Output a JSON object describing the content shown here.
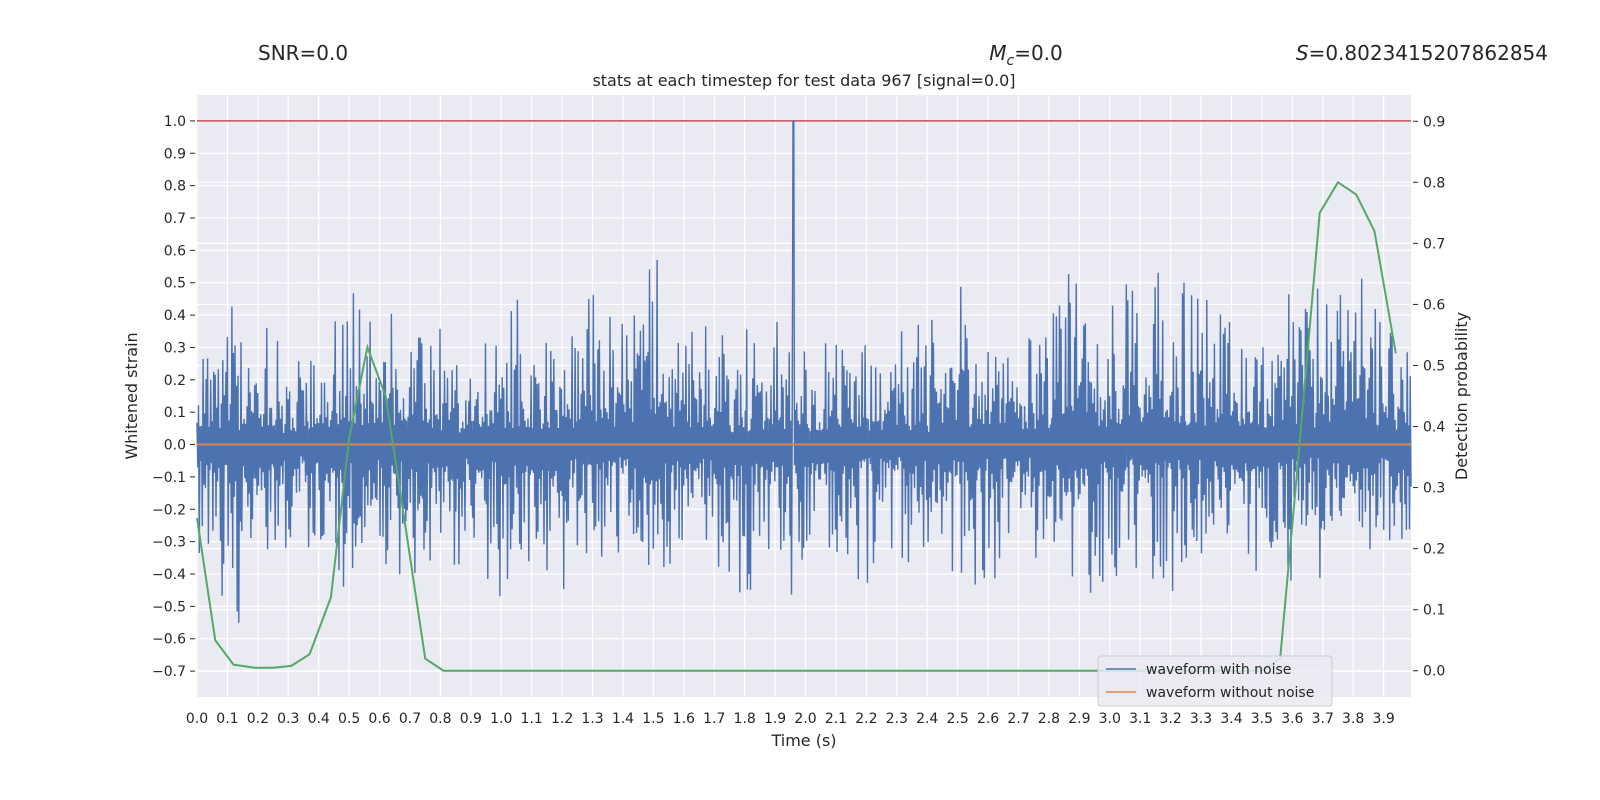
{
  "annotations": {
    "snr": "SNR=0.0",
    "mc_symbol": "M",
    "mc_sub": "c",
    "mc_value": "=0.0",
    "s_symbol": "S",
    "s_value": "=0.8023415207862854"
  },
  "chart_data": {
    "type": "line",
    "title": "stats at each timestep for test data 967 [signal=0.0]",
    "xlabel": "Time (s)",
    "ylabel": "Whitened strain",
    "y2label": "Detection probability",
    "xlim": [
      0.0,
      3.99
    ],
    "ylim": [
      -0.78,
      1.08
    ],
    "y2lim": [
      -0.043,
      0.943
    ],
    "xticks": [
      "0.0",
      "0.1",
      "0.2",
      "0.3",
      "0.4",
      "0.5",
      "0.6",
      "0.7",
      "0.8",
      "0.9",
      "1.0",
      "1.1",
      "1.2",
      "1.3",
      "1.4",
      "1.5",
      "1.6",
      "1.7",
      "1.8",
      "1.9",
      "2.0",
      "2.1",
      "2.2",
      "2.3",
      "2.4",
      "2.5",
      "2.6",
      "2.7",
      "2.8",
      "2.9",
      "3.0",
      "3.1",
      "3.2",
      "3.3",
      "3.4",
      "3.5",
      "3.6",
      "3.7",
      "3.8",
      "3.9"
    ],
    "yticks": [
      "1.0",
      "0.9",
      "0.8",
      "0.7",
      "0.6",
      "0.5",
      "0.4",
      "0.3",
      "0.2",
      "0.1",
      "0.0",
      "−0.1",
      "−0.2",
      "−0.3",
      "−0.4",
      "−0.5",
      "−0.6",
      "−0.7"
    ],
    "y2ticks": [
      "0.9",
      "0.8",
      "0.7",
      "0.6",
      "0.5",
      "0.4",
      "0.3",
      "0.2",
      "0.1",
      "0.0"
    ],
    "grid": true,
    "legend_position": "bottom-right",
    "threshold": {
      "value": 1.0,
      "axis": "left",
      "color": "#c44e52"
    },
    "series": [
      {
        "name": "waveform with noise",
        "color": "#4c72b0",
        "axis": "left",
        "range_approx": [
          -0.7,
          1.0
        ],
        "peak": {
          "x": 1.96,
          "y": 1.0
        },
        "envelope": {
          "x": [
            0.0,
            0.1,
            0.2,
            0.3,
            0.4,
            0.5,
            0.6,
            0.7,
            0.8,
            0.9,
            1.0,
            1.1,
            1.2,
            1.3,
            1.4,
            1.5,
            1.6,
            1.7,
            1.8,
            1.9,
            2.0,
            2.1,
            2.2,
            2.3,
            2.4,
            2.5,
            2.6,
            2.7,
            2.8,
            2.9,
            3.0,
            3.1,
            3.2,
            3.3,
            3.4,
            3.5,
            3.6,
            3.7,
            3.8,
            3.9,
            3.99
          ],
          "upper": [
            0.46,
            0.5,
            0.45,
            0.4,
            0.43,
            0.58,
            0.55,
            0.57,
            0.46,
            0.4,
            0.45,
            0.46,
            0.4,
            0.66,
            0.45,
            0.7,
            0.42,
            0.4,
            0.44,
            0.55,
            0.45,
            0.42,
            0.4,
            0.44,
            0.45,
            0.5,
            0.47,
            0.4,
            0.6,
            0.69,
            0.57,
            0.62,
            0.57,
            0.64,
            0.6,
            0.43,
            0.62,
            0.63,
            0.62,
            0.6,
            0.45
          ],
          "lower": [
            -0.42,
            -0.69,
            -0.62,
            -0.45,
            -0.42,
            -0.64,
            -0.48,
            -0.62,
            -0.42,
            -0.48,
            -0.57,
            -0.6,
            -0.5,
            -0.45,
            -0.42,
            -0.58,
            -0.57,
            -0.48,
            -0.5,
            -0.52,
            -0.45,
            -0.55,
            -0.45,
            -0.43,
            -0.48,
            -0.55,
            -0.5,
            -0.43,
            -0.55,
            -0.48,
            -0.61,
            -0.53,
            -0.55,
            -0.45,
            -0.48,
            -0.52,
            -0.45,
            -0.5,
            -0.5,
            -0.47,
            -0.45
          ]
        }
      },
      {
        "name": "waveform without noise",
        "color": "#dd8452",
        "axis": "left",
        "x": [
          0.0,
          3.99
        ],
        "values": [
          0.0,
          0.0
        ]
      },
      {
        "name": "Detection probability",
        "color": "#55a868",
        "axis": "right",
        "x": [
          0.0,
          0.06,
          0.12,
          0.19,
          0.25,
          0.31,
          0.37,
          0.44,
          0.5,
          0.56,
          0.62,
          0.69,
          0.75,
          0.81,
          1.0,
          2.0,
          3.0,
          3.5,
          3.56,
          3.62,
          3.69,
          3.75,
          3.81,
          3.87,
          3.94
        ],
        "values": [
          0.25,
          0.05,
          0.01,
          0.005,
          0.005,
          0.008,
          0.027,
          0.12,
          0.38,
          0.53,
          0.45,
          0.22,
          0.02,
          0.0,
          0.0,
          0.0,
          0.0,
          0.0,
          0.02,
          0.35,
          0.75,
          0.8,
          0.78,
          0.72,
          0.52
        ]
      }
    ]
  }
}
